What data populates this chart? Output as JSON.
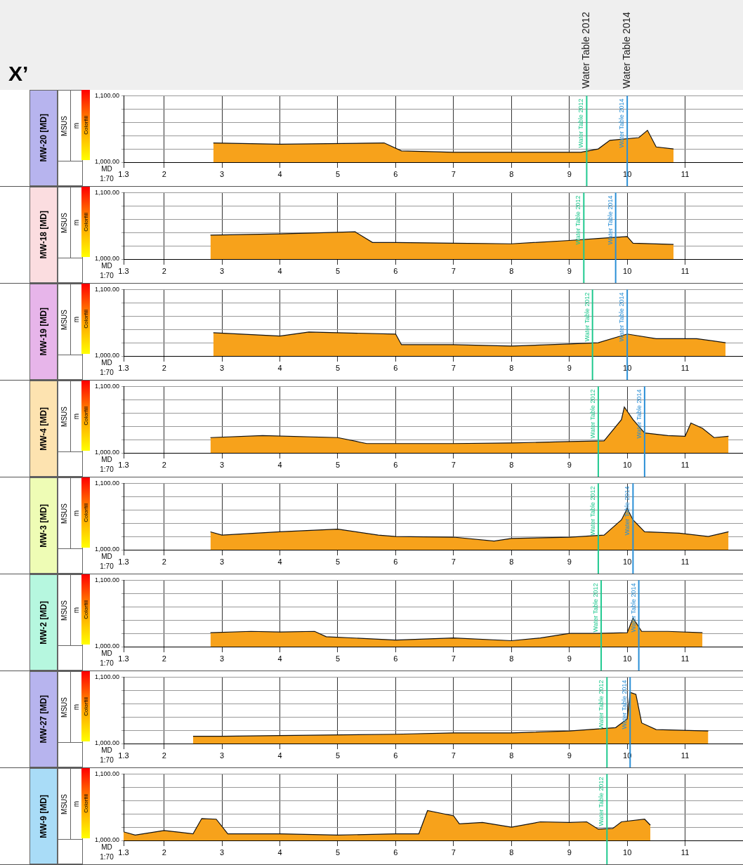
{
  "chart_data": [
    {
      "type": "area",
      "title": "MW-20 [MD]",
      "xlabel": "MD",
      "ylabel": "MSUS",
      "annotations": [
        "X’",
        "m",
        "1:70",
        "Colorfill"
      ],
      "xlim": [
        1.3,
        12
      ],
      "xticks": [
        1.3,
        2,
        3,
        4,
        5,
        6,
        7,
        8,
        9,
        10,
        11
      ],
      "ylim": [
        1000,
        1100
      ],
      "yticks": [
        {
          "value": 1000,
          "label": "1,000.00"
        },
        {
          "value": 1020,
          "label": null
        },
        {
          "value": 1040,
          "label": null
        },
        {
          "value": 1060,
          "label": null
        },
        {
          "value": 1080,
          "label": null
        },
        {
          "value": 1100,
          "label": "1,100.00"
        }
      ],
      "grid": true,
      "series": [
        {
          "color": "#f7a21b",
          "x": [
            2.85,
            4,
            5.8,
            6.1,
            7,
            8,
            9.2,
            9.5,
            9.7,
            10.2,
            10.35,
            10.5,
            10.8
          ],
          "values": [
            1029,
            1027,
            1029,
            1017,
            1015,
            1015,
            1015,
            1020,
            1033,
            1037,
            1048,
            1023,
            1020
          ]
        }
      ],
      "ref_lines": [
        {
          "axis": "x",
          "value": 9.3,
          "label": "Water Table 2012",
          "color": "#1fc98f"
        },
        {
          "axis": "x",
          "value": 10,
          "label": "Water Table 2014",
          "color": "#2a8fd6"
        }
      ]
    },
    {
      "type": "area",
      "title": "MW-18 [MD]",
      "xlabel": "MD",
      "ylabel": "MSUS",
      "annotations": [
        "m",
        "1:70",
        "Colorfill"
      ],
      "xlim": [
        1.3,
        12
      ],
      "xticks": [
        1.3,
        2,
        3,
        4,
        5,
        6,
        7,
        8,
        9,
        10,
        11
      ],
      "ylim": [
        1000,
        1100
      ],
      "yticks": [
        {
          "value": 1000,
          "label": "1,000.00"
        },
        {
          "value": 1020,
          "label": null
        },
        {
          "value": 1040,
          "label": null
        },
        {
          "value": 1060,
          "label": null
        },
        {
          "value": 1080,
          "label": null
        },
        {
          "value": 1100,
          "label": "1,100.00"
        }
      ],
      "grid": true,
      "series": [
        {
          "color": "#f7a21b",
          "x": [
            2.8,
            4,
            5.3,
            5.6,
            6,
            7,
            8,
            9,
            9.5,
            10,
            10.1,
            10.8
          ],
          "values": [
            1036,
            1038,
            1041,
            1025,
            1025,
            1024,
            1023,
            1028,
            1031,
            1034,
            1024,
            1022
          ]
        }
      ],
      "ref_lines": [
        {
          "axis": "x",
          "value": 9.25,
          "label": "Water Table 2012",
          "color": "#1fc98f"
        },
        {
          "axis": "x",
          "value": 9.8,
          "label": "Water Table 2014",
          "color": "#2a8fd6"
        }
      ]
    },
    {
      "type": "area",
      "title": "MW-19 [MD]",
      "xlabel": "MD",
      "ylabel": "MSUS",
      "annotations": [
        "m",
        "1:70",
        "Colorfill"
      ],
      "xlim": [
        1.3,
        12
      ],
      "xticks": [
        1.3,
        2,
        3,
        4,
        5,
        6,
        7,
        8,
        9,
        10,
        11
      ],
      "ylim": [
        1000,
        1100
      ],
      "yticks": [
        {
          "value": 1000,
          "label": "1,000.00"
        },
        {
          "value": 1020,
          "label": null
        },
        {
          "value": 1040,
          "label": null
        },
        {
          "value": 1060,
          "label": null
        },
        {
          "value": 1080,
          "label": null
        },
        {
          "value": 1100,
          "label": "1,100.00"
        }
      ],
      "grid": true,
      "series": [
        {
          "color": "#f7a21b",
          "x": [
            2.85,
            4,
            4.5,
            6,
            6.1,
            7,
            8,
            9,
            9.5,
            10,
            10.5,
            11.2,
            11.7
          ],
          "values": [
            1035,
            1030,
            1036,
            1033,
            1017,
            1017,
            1015,
            1018,
            1020,
            1033,
            1026,
            1026,
            1020
          ]
        }
      ],
      "ref_lines": [
        {
          "axis": "x",
          "value": 9.4,
          "label": "Water Table 2012",
          "color": "#1fc98f"
        },
        {
          "axis": "x",
          "value": 10,
          "label": "Water Table 2014",
          "color": "#2a8fd6"
        }
      ]
    },
    {
      "type": "area",
      "title": "MW-4 [MD]",
      "xlabel": "MD",
      "ylabel": "MSUS",
      "annotations": [
        "m",
        "1:70",
        "Colorfill"
      ],
      "xlim": [
        1.3,
        12
      ],
      "xticks": [
        1.3,
        2,
        3,
        4,
        5,
        6,
        7,
        8,
        9,
        10,
        11
      ],
      "ylim": [
        1000,
        1100
      ],
      "yticks": [
        {
          "value": 1000,
          "label": "1,000.00"
        },
        {
          "value": 1020,
          "label": null
        },
        {
          "value": 1040,
          "label": null
        },
        {
          "value": 1060,
          "label": null
        },
        {
          "value": 1080,
          "label": null
        },
        {
          "value": 1100,
          "label": "1,100.00"
        }
      ],
      "grid": true,
      "series": [
        {
          "color": "#f7a21b",
          "x": [
            2.8,
            3.7,
            5,
            5.5,
            6,
            7,
            8,
            9,
            9.6,
            9.9,
            9.95,
            10.1,
            10.3,
            10.7,
            11,
            11.1,
            11.3,
            11.5,
            11.75
          ],
          "values": [
            1023,
            1026,
            1023,
            1014,
            1014,
            1014,
            1015,
            1017,
            1018,
            1050,
            1069,
            1050,
            1030,
            1026,
            1025,
            1045,
            1037,
            1023,
            1025
          ]
        }
      ],
      "ref_lines": [
        {
          "axis": "x",
          "value": 9.5,
          "label": "Water Table 2012",
          "color": "#1fc98f"
        },
        {
          "axis": "x",
          "value": 10.3,
          "label": "Water Table 2014",
          "color": "#2a8fd6"
        }
      ]
    },
    {
      "type": "area",
      "title": "MW-3 [MD]",
      "xlabel": "MD",
      "ylabel": "MSUS",
      "annotations": [
        "m",
        "1:70",
        "Colorfill"
      ],
      "xlim": [
        1.3,
        12
      ],
      "xticks": [
        1.3,
        2,
        3,
        4,
        5,
        6,
        7,
        8,
        9,
        10,
        11
      ],
      "ylim": [
        1000,
        1100
      ],
      "yticks": [
        {
          "value": 1000,
          "label": "1,000.00"
        },
        {
          "value": 1020,
          "label": null
        },
        {
          "value": 1040,
          "label": null
        },
        {
          "value": 1060,
          "label": null
        },
        {
          "value": 1080,
          "label": null
        },
        {
          "value": 1100,
          "label": "1,100.00"
        }
      ],
      "grid": true,
      "series": [
        {
          "color": "#f7a21b",
          "x": [
            2.8,
            3,
            4,
            5,
            5.7,
            6,
            7,
            7.7,
            8,
            9,
            9.6,
            9.9,
            10,
            10.1,
            10.3,
            10.9,
            11.4,
            11.75
          ],
          "values": [
            1027,
            1022,
            1027,
            1031,
            1022,
            1020,
            1019,
            1013,
            1017,
            1019,
            1022,
            1045,
            1062,
            1045,
            1027,
            1025,
            1020,
            1027
          ]
        }
      ],
      "ref_lines": [
        {
          "axis": "x",
          "value": 9.5,
          "label": "Water Table 2012",
          "color": "#1fc98f"
        },
        {
          "axis": "x",
          "value": 10.1,
          "label": "Water Table 2014",
          "color": "#2a8fd6"
        }
      ]
    },
    {
      "type": "area",
      "title": "MW-2 [MD]",
      "xlabel": "MD",
      "ylabel": "MSUS",
      "annotations": [
        "m",
        "1:70",
        "Colorfill"
      ],
      "xlim": [
        1.3,
        12
      ],
      "xticks": [
        1.3,
        2,
        3,
        4,
        5,
        6,
        7,
        8,
        9,
        10,
        11
      ],
      "ylim": [
        1000,
        1100
      ],
      "yticks": [
        {
          "value": 1000,
          "label": "1,000.00"
        },
        {
          "value": 1020,
          "label": null
        },
        {
          "value": 1040,
          "label": null
        },
        {
          "value": 1060,
          "label": null
        },
        {
          "value": 1080,
          "label": null
        },
        {
          "value": 1100,
          "label": "1,100.00"
        }
      ],
      "grid": true,
      "series": [
        {
          "color": "#f7a21b",
          "x": [
            2.8,
            3.5,
            4,
            4.6,
            4.8,
            6,
            7,
            8,
            8.5,
            9,
            9.5,
            10,
            10.1,
            10.25,
            10.7,
            11.3
          ],
          "values": [
            1021,
            1023,
            1022,
            1023,
            1015,
            1010,
            1013,
            1009,
            1013,
            1020,
            1020,
            1021,
            1043,
            1023,
            1023,
            1021
          ]
        }
      ],
      "ref_lines": [
        {
          "axis": "x",
          "value": 9.55,
          "label": "Water Table 2012",
          "color": "#1fc98f"
        },
        {
          "axis": "x",
          "value": 10.2,
          "label": "Water Table 2014",
          "color": "#2a8fd6"
        }
      ]
    },
    {
      "type": "area",
      "title": "MW-27 [MD]",
      "xlabel": "MD",
      "ylabel": "MSUS",
      "annotations": [
        "m",
        "1:70",
        "Colorfill"
      ],
      "xlim": [
        1.3,
        12
      ],
      "xticks": [
        1.3,
        2,
        3,
        4,
        5,
        6,
        7,
        8,
        9,
        10,
        11
      ],
      "ylim": [
        1000,
        1100
      ],
      "yticks": [
        {
          "value": 1000,
          "label": "1,000.00"
        },
        {
          "value": 1020,
          "label": null
        },
        {
          "value": 1040,
          "label": null
        },
        {
          "value": 1060,
          "label": null
        },
        {
          "value": 1080,
          "label": null
        },
        {
          "value": 1100,
          "label": "1,100.00"
        }
      ],
      "grid": true,
      "series": [
        {
          "color": "#f7a21b",
          "x": [
            2.5,
            3,
            4,
            6,
            7,
            8,
            9,
            9.8,
            10,
            10.05,
            10.15,
            10.25,
            10.5,
            11.4
          ],
          "values": [
            1011,
            1011,
            1012,
            1014,
            1016,
            1016,
            1019,
            1024,
            1037,
            1077,
            1074,
            1031,
            1021,
            1019
          ]
        }
      ],
      "ref_lines": [
        {
          "axis": "x",
          "value": 9.65,
          "label": "Water Table 2012",
          "color": "#1fc98f"
        },
        {
          "axis": "x",
          "value": 10.05,
          "label": "Water Table 2014",
          "color": "#2a8fd6"
        }
      ]
    },
    {
      "type": "area",
      "title": "MW-9 [MD]",
      "xlabel": "MD",
      "ylabel": "MSUS",
      "annotations": [
        "m",
        "1:70",
        "Colorfill"
      ],
      "xlim": [
        1.3,
        12
      ],
      "xticks": [
        1.3,
        2,
        3,
        4,
        5,
        6,
        7,
        8,
        9,
        10,
        11
      ],
      "ylim": [
        1000,
        1100
      ],
      "yticks": [
        {
          "value": 1000,
          "label": "1,000.00"
        },
        {
          "value": 1020,
          "label": null
        },
        {
          "value": 1040,
          "label": null
        },
        {
          "value": 1060,
          "label": null
        },
        {
          "value": 1080,
          "label": null
        },
        {
          "value": 1100,
          "label": "1,100.00"
        }
      ],
      "grid": true,
      "series": [
        {
          "color": "#f7a21b",
          "x": [
            1.3,
            1.5,
            2,
            2.5,
            2.65,
            2.9,
            3.1,
            4,
            5,
            6,
            6.4,
            6.55,
            7,
            7.1,
            7.5,
            8,
            8.5,
            9,
            9.3,
            9.5,
            9.75,
            9.9,
            10.3,
            10.4
          ],
          "values": [
            1013,
            1008,
            1015,
            1010,
            1033,
            1032,
            1010,
            1010,
            1008,
            1010,
            1010,
            1045,
            1037,
            1025,
            1027,
            1020,
            1028,
            1027,
            1028,
            1017,
            1018,
            1028,
            1032,
            1023
          ]
        }
      ],
      "ref_lines": [
        {
          "axis": "x",
          "value": 9.65,
          "label": "Water Table 2012",
          "color": "#1fc98f"
        }
      ]
    }
  ]
}
